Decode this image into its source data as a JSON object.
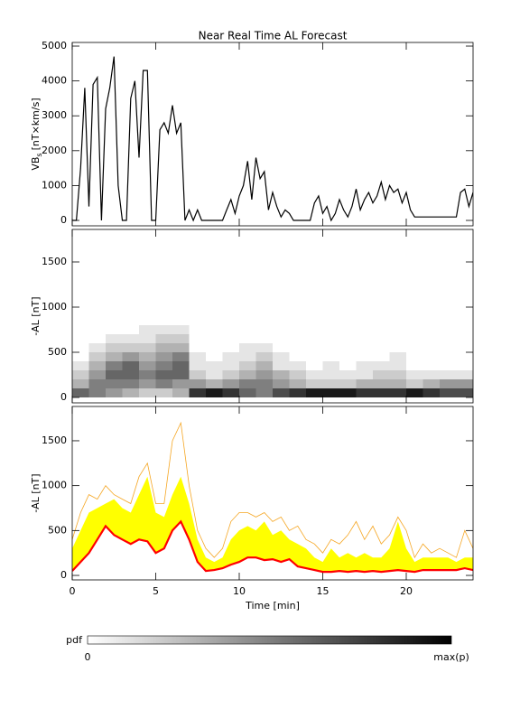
{
  "chart_data": [
    {
      "type": "line",
      "title": "Near Real Time AL Forecast",
      "ylabel": "VB",
      "ylabel_sub": "s",
      "ylabel_unit": "[nT×km/s]",
      "color": "#000000",
      "xlim": [
        0,
        24
      ],
      "ylim": [
        -155,
        5104
      ],
      "xticks": [
        0,
        5,
        10,
        15,
        20
      ],
      "yticks": [
        0,
        1000,
        2000,
        3000,
        4000,
        5000
      ],
      "x_tick_labels": false,
      "x": [
        0,
        0.25,
        0.5,
        0.75,
        1,
        1.25,
        1.5,
        1.75,
        2,
        2.25,
        2.5,
        2.75,
        3,
        3.25,
        3.5,
        3.75,
        4,
        4.25,
        4.5,
        4.75,
        5,
        5.25,
        5.5,
        5.75,
        6,
        6.25,
        6.5,
        6.75,
        7,
        7.25,
        7.5,
        7.75,
        8,
        8.25,
        8.5,
        8.75,
        9,
        9.25,
        9.5,
        9.75,
        10,
        10.25,
        10.5,
        10.75,
        11,
        11.25,
        11.5,
        11.75,
        12,
        12.25,
        12.5,
        12.75,
        13,
        13.25,
        13.5,
        13.75,
        14,
        14.25,
        14.5,
        14.75,
        15,
        15.25,
        15.5,
        15.75,
        16,
        16.25,
        16.5,
        16.75,
        17,
        17.25,
        17.5,
        17.75,
        18,
        18.25,
        18.5,
        18.75,
        19,
        19.25,
        19.5,
        19.75,
        20,
        20.25,
        20.5,
        20.75,
        21,
        21.25,
        21.5,
        21.75,
        22,
        22.25,
        22.5,
        22.75,
        23,
        23.25,
        23.5,
        23.75,
        24
      ],
      "values": [
        0,
        0,
        1500,
        3800,
        400,
        3900,
        4100,
        0,
        3200,
        3800,
        4700,
        1000,
        0,
        0,
        3500,
        4000,
        1800,
        4300,
        4300,
        0,
        0,
        2600,
        2800,
        2500,
        3300,
        2500,
        2800,
        0,
        300,
        0,
        300,
        0,
        0,
        0,
        0,
        0,
        0,
        300,
        600,
        200,
        700,
        1000,
        1700,
        600,
        1800,
        1200,
        1400,
        300,
        800,
        400,
        100,
        300,
        200,
        0,
        0,
        0,
        0,
        0,
        500,
        700,
        200,
        400,
        0,
        200,
        600,
        300,
        100,
        400,
        900,
        300,
        600,
        800,
        500,
        700,
        1100,
        600,
        1000,
        800,
        900,
        500,
        800,
        300,
        100,
        100,
        100,
        100,
        100,
        100,
        100,
        100,
        100,
        100,
        100,
        800,
        900,
        400,
        800
      ]
    },
    {
      "type": "heatmap",
      "ylabel": "-AL [nT]",
      "color": "#000000",
      "colorbar_label": "pdf",
      "colorbar_min_label": "0",
      "colorbar_max_label": "max(p)",
      "xlim": [
        0,
        24
      ],
      "ylim": [
        -60,
        1860
      ],
      "xticks": [
        0,
        5,
        10,
        15,
        20
      ],
      "yticks": [
        0,
        500,
        1000,
        1500
      ],
      "x_tick_labels": false,
      "x_bins": [
        0,
        1,
        2,
        3,
        4,
        5,
        6,
        7,
        8,
        9,
        10,
        11,
        12,
        13,
        14,
        15,
        16,
        17,
        18,
        19,
        20,
        21,
        22,
        23,
        24
      ],
      "y_bins": [
        0,
        100,
        200,
        300,
        400,
        500,
        600,
        700,
        800
      ],
      "pdf": [
        [
          0.6,
          0.3,
          0.2,
          0.1,
          0,
          0,
          0,
          0
        ],
        [
          0.5,
          0.5,
          0.4,
          0.3,
          0.2,
          0.1,
          0,
          0
        ],
        [
          0.4,
          0.5,
          0.6,
          0.5,
          0.3,
          0.2,
          0.1,
          0
        ],
        [
          0.3,
          0.5,
          0.6,
          0.6,
          0.4,
          0.2,
          0.1,
          0
        ],
        [
          0.2,
          0.4,
          0.5,
          0.4,
          0.3,
          0.2,
          0.1,
          0.1
        ],
        [
          0.2,
          0.5,
          0.6,
          0.5,
          0.4,
          0.3,
          0.2,
          0.1
        ],
        [
          0.3,
          0.4,
          0.6,
          0.6,
          0.5,
          0.3,
          0.2,
          0.1
        ],
        [
          0.8,
          0.4,
          0.2,
          0.1,
          0.1,
          0,
          0,
          0
        ],
        [
          0.9,
          0.3,
          0.1,
          0.1,
          0,
          0,
          0,
          0
        ],
        [
          0.8,
          0.4,
          0.2,
          0.1,
          0.1,
          0,
          0,
          0
        ],
        [
          0.6,
          0.5,
          0.3,
          0.2,
          0.1,
          0.1,
          0,
          0
        ],
        [
          0.5,
          0.5,
          0.4,
          0.3,
          0.2,
          0.1,
          0,
          0
        ],
        [
          0.7,
          0.4,
          0.3,
          0.1,
          0.1,
          0,
          0,
          0
        ],
        [
          0.8,
          0.3,
          0.2,
          0.1,
          0,
          0,
          0,
          0
        ],
        [
          0.9,
          0.2,
          0.1,
          0,
          0,
          0,
          0,
          0
        ],
        [
          0.9,
          0.2,
          0.1,
          0.1,
          0,
          0,
          0,
          0
        ],
        [
          0.9,
          0.2,
          0.1,
          0,
          0,
          0,
          0,
          0
        ],
        [
          0.8,
          0.3,
          0.1,
          0.1,
          0,
          0,
          0,
          0
        ],
        [
          0.8,
          0.3,
          0.2,
          0.1,
          0,
          0,
          0,
          0
        ],
        [
          0.8,
          0.3,
          0.2,
          0.1,
          0.1,
          0,
          0,
          0
        ],
        [
          0.9,
          0.2,
          0.1,
          0,
          0,
          0,
          0,
          0
        ],
        [
          0.8,
          0.3,
          0.1,
          0,
          0,
          0,
          0,
          0
        ],
        [
          0.7,
          0.4,
          0.1,
          0,
          0,
          0,
          0,
          0
        ],
        [
          0.7,
          0.4,
          0.1,
          0,
          0,
          0,
          0,
          0
        ]
      ]
    },
    {
      "type": "band",
      "ylabel": "-AL [nT]",
      "xlabel": "Time [min]",
      "xlim": [
        0,
        24
      ],
      "ylim": [
        -50,
        1882
      ],
      "xticks": [
        0,
        5,
        10,
        15,
        20
      ],
      "yticks": [
        0,
        500,
        1000,
        1500
      ],
      "x_tick_labels": true,
      "x": [
        0,
        0.5,
        1,
        1.5,
        2,
        2.5,
        3,
        3.5,
        4,
        4.5,
        5,
        5.5,
        6,
        6.5,
        7,
        7.5,
        8,
        8.5,
        9,
        9.5,
        10,
        10.5,
        11,
        11.5,
        12,
        12.5,
        13,
        13.5,
        14,
        14.5,
        15,
        15.5,
        16,
        16.5,
        17,
        17.5,
        18,
        18.5,
        19,
        19.5,
        20,
        20.5,
        21,
        21.5,
        22,
        22.5,
        23,
        23.5,
        24
      ],
      "envelope": {
        "color": "#f5a623",
        "values": [
          400,
          700,
          900,
          850,
          1000,
          900,
          850,
          800,
          1100,
          1250,
          800,
          800,
          1500,
          1700,
          1000,
          500,
          300,
          200,
          300,
          600,
          700,
          700,
          650,
          700,
          600,
          650,
          500,
          550,
          400,
          350,
          250,
          400,
          350,
          450,
          600,
          400,
          550,
          350,
          450,
          650,
          500,
          200,
          350,
          250,
          300,
          250,
          200,
          500,
          300
        ]
      },
      "band": {
        "color": "#ffff00",
        "values": [
          300,
          500,
          700,
          750,
          800,
          850,
          750,
          700,
          900,
          1100,
          700,
          650,
          900,
          1100,
          800,
          400,
          200,
          150,
          200,
          400,
          500,
          550,
          500,
          600,
          450,
          500,
          400,
          350,
          300,
          200,
          150,
          300,
          200,
          250,
          200,
          250,
          200,
          200,
          300,
          600,
          300,
          150,
          200,
          200,
          200,
          200,
          150,
          200,
          200
        ]
      },
      "line": {
        "color": "#ff0000",
        "values": [
          50,
          150,
          250,
          400,
          550,
          450,
          400,
          350,
          400,
          380,
          250,
          300,
          500,
          600,
          400,
          150,
          50,
          60,
          80,
          120,
          150,
          200,
          200,
          170,
          180,
          150,
          180,
          100,
          80,
          60,
          40,
          40,
          50,
          40,
          50,
          40,
          50,
          40,
          50,
          60,
          50,
          40,
          60,
          60,
          60,
          60,
          60,
          80,
          60
        ]
      }
    }
  ]
}
